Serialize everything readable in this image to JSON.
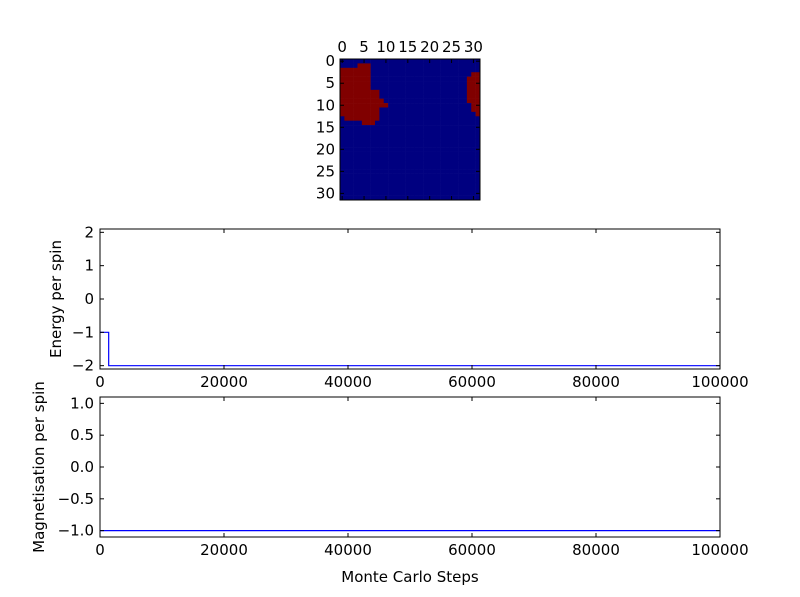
{
  "chart_data": [
    {
      "type": "heatmap",
      "xticks": [
        0,
        5,
        10,
        15,
        20,
        25,
        30
      ],
      "yticks": [
        0,
        5,
        10,
        15,
        20,
        25,
        30
      ],
      "size": 32,
      "colors": {
        "up": "#800000",
        "down": "#000080"
      },
      "rows": [
        "00000000000000000000000000000000",
        "00001110000000000000000000000000",
        "11111110000000000000000000000000",
        "11111110000000000000000000000011",
        "11111110000000000000000000000111",
        "11111110000000000000000000000111",
        "11111110000000000000000000000111",
        "11111111100000000000000000000111",
        "11111111100000000000000000000111",
        "11111111110000000000000000000111",
        "11111111111000000000000000000011",
        "11111111100000000000000000000011",
        "11111111100000000000000000000001",
        "01111111100000000000000000000000",
        "00000111000000000000000000000000",
        "00000000000000000000000000000000",
        "00000000000000000000000000000000",
        "00000000000000000000000000000000",
        "00000000000000000000000000000000",
        "00000000000000000000000000000000",
        "00000000000000000000000000000000",
        "00000000000000000000000000000000",
        "00000000000000000000000000000000",
        "00000000000000000000000000000000",
        "00000000000000000000000000000000",
        "00000000000000000000000000000000",
        "00000000000000000000000000000000",
        "00000000000000000000000000000000",
        "00000000000000000000000000000000",
        "00000000000000000000000000000000",
        "00000000000000000000000000000000",
        "00000000000000000000000000000000"
      ]
    },
    {
      "type": "line",
      "ylabel": "Energy per spin",
      "xlabel": "",
      "xlim": [
        0,
        100000
      ],
      "ylim": [
        -2.1,
        2.1
      ],
      "xticks": [
        "0",
        "20000",
        "40000",
        "60000",
        "80000",
        "100000"
      ],
      "yticks": [
        "2",
        "1",
        "0",
        "−1",
        "−2"
      ],
      "ytick_values": [
        2,
        1,
        0,
        -1,
        -2
      ],
      "color": "#0000ff",
      "x": [
        0,
        1400,
        1400,
        100000
      ],
      "y": [
        -1,
        -1,
        -2,
        -2
      ]
    },
    {
      "type": "line",
      "ylabel": "Magnetisation per spin",
      "xlabel": "Monte Carlo Steps",
      "xlim": [
        0,
        100000
      ],
      "ylim": [
        -1.1,
        1.1
      ],
      "xticks": [
        "0",
        "20000",
        "40000",
        "60000",
        "80000",
        "100000"
      ],
      "yticks": [
        "1.0",
        "0.5",
        "0.0",
        "−0.5",
        "−1.0"
      ],
      "ytick_values": [
        1,
        0.5,
        0,
        -0.5,
        -1
      ],
      "color": "#0000ff",
      "x": [
        0,
        100000
      ],
      "y": [
        -1,
        -1
      ]
    }
  ]
}
